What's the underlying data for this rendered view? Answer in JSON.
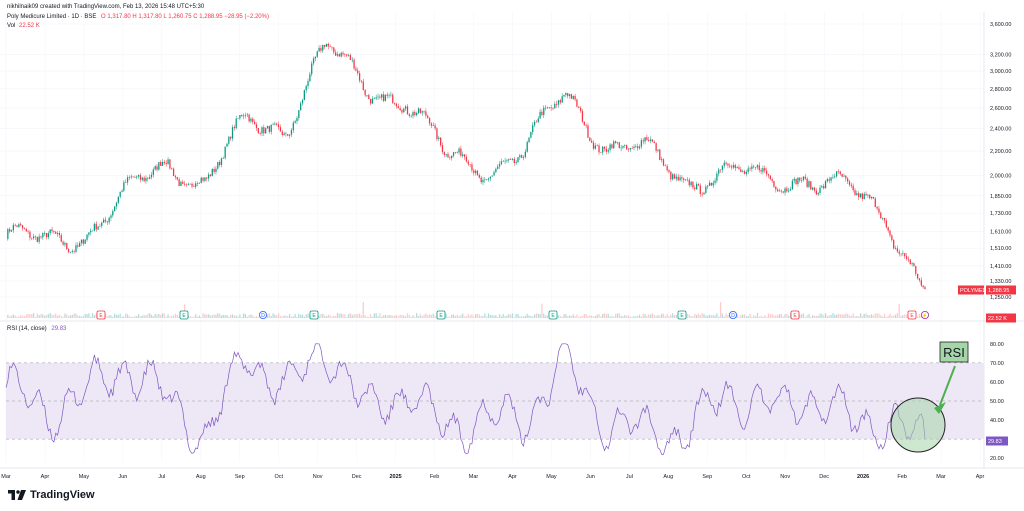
{
  "header": {
    "created_line": "nikhilnaik09 created with TradingView.com, Feb 13, 2026 15:48 UTC+5:30",
    "instrument": "Poly Medicure Limited · 1D · BSE",
    "ohlc": "O 1,317.80  H 1,317.80  L 1,260.75  C 1,288.95  −28.95 (−2.20%)",
    "vol_label": "Vol",
    "vol_value": "22.52 K"
  },
  "rsi_panel": {
    "label": "RSI (14, close)",
    "value": "29.83"
  },
  "annotation": {
    "text": "RSI"
  },
  "brand": {
    "name": "TradingView"
  },
  "price_tags": {
    "symbol": "POLYMED",
    "last": "1,288.95",
    "volume": "22.52 K",
    "rsi": "29.83"
  },
  "colors": {
    "up": "#089981",
    "down": "#f23645",
    "rsi_line": "#7e57c2",
    "rsi_band": "#ede7f6",
    "annotation_fill": "#a5d6a7",
    "annotation_arrow": "#4caf50"
  },
  "events": [
    {
      "label": "E",
      "kind": "earnings-down"
    },
    {
      "label": "E",
      "kind": "earnings-up"
    },
    {
      "label": "D",
      "kind": "dividend"
    },
    {
      "label": "E",
      "kind": "earnings-up"
    },
    {
      "label": "E",
      "kind": "earnings-up"
    },
    {
      "label": "E",
      "kind": "earnings-up"
    },
    {
      "label": "E",
      "kind": "earnings-up"
    },
    {
      "label": "D",
      "kind": "dividend"
    },
    {
      "label": "E",
      "kind": "earnings-down"
    },
    {
      "label": "E",
      "kind": "earnings-down"
    },
    {
      "label": "⚡",
      "kind": "split"
    }
  ],
  "chart_data": [
    {
      "type": "line",
      "title": "Poly Medicure Limited · 1D · BSE",
      "scale": "log",
      "y_ticks": [
        "3,600.00",
        "3,200.00",
        "3,000.00",
        "2,800.00",
        "2,600.00",
        "2,400.00",
        "2,200.00",
        "2,000.00",
        "1,850.00",
        "1,730.00",
        "1,610.00",
        "1,510.00",
        "1,410.00",
        "1,330.00",
        "1,250.00"
      ],
      "x_ticks": [
        "Mar",
        "Apr",
        "May",
        "Jun",
        "Jul",
        "Aug",
        "Sep",
        "Oct",
        "Nov",
        "Dec",
        "2025",
        "Feb",
        "Mar",
        "Apr",
        "May",
        "Jun",
        "Jul",
        "Aug",
        "Sep",
        "Oct",
        "Nov",
        "Dec",
        "2026",
        "Feb",
        "Mar",
        "Apr"
      ],
      "x": [
        "2024-03",
        "2024-04",
        "2024-05",
        "2024-06",
        "2024-07",
        "2024-08",
        "2024-09",
        "2024-10",
        "2024-11",
        "2024-12",
        "2025-01",
        "2025-02",
        "2025-03",
        "2025-04",
        "2025-05",
        "2025-06",
        "2025-07",
        "2025-08",
        "2025-09",
        "2025-10",
        "2025-11",
        "2025-12",
        "2026-01",
        "2026-02"
      ],
      "series": [
        {
          "values": [
            1590,
            1540,
            1600,
            1850,
            2100,
            1950,
            2450,
            2400,
            3300,
            2800,
            2700,
            2150,
            2050,
            2200,
            2750,
            2250,
            2200,
            1950,
            2050,
            1950,
            2000,
            1900,
            1700,
            1289
          ]
        }
      ],
      "last_value": 1288.95
    },
    {
      "type": "line",
      "title": "RSI (14, close)",
      "y_ticks": [
        "80.00",
        "70.00",
        "60.00",
        "50.00",
        "40.00",
        "30.00",
        "20.00"
      ],
      "ylim": [
        18,
        82
      ],
      "reference_lines": [
        70,
        50,
        30
      ],
      "x": [
        "2024-03",
        "2024-04",
        "2024-05",
        "2024-06",
        "2024-07",
        "2024-08",
        "2024-09",
        "2024-10",
        "2024-11",
        "2024-12",
        "2025-01",
        "2025-02",
        "2025-03",
        "2025-04",
        "2025-05",
        "2025-06",
        "2025-07",
        "2025-08",
        "2025-09",
        "2025-10",
        "2025-11",
        "2025-12",
        "2026-01",
        "2026-02"
      ],
      "series": [
        {
          "values": [
            60,
            42,
            55,
            68,
            52,
            30,
            75,
            55,
            80,
            45,
            55,
            35,
            42,
            40,
            72,
            38,
            35,
            32,
            55,
            45,
            52,
            42,
            38,
            30
          ]
        }
      ],
      "last_value": 29.83
    }
  ]
}
